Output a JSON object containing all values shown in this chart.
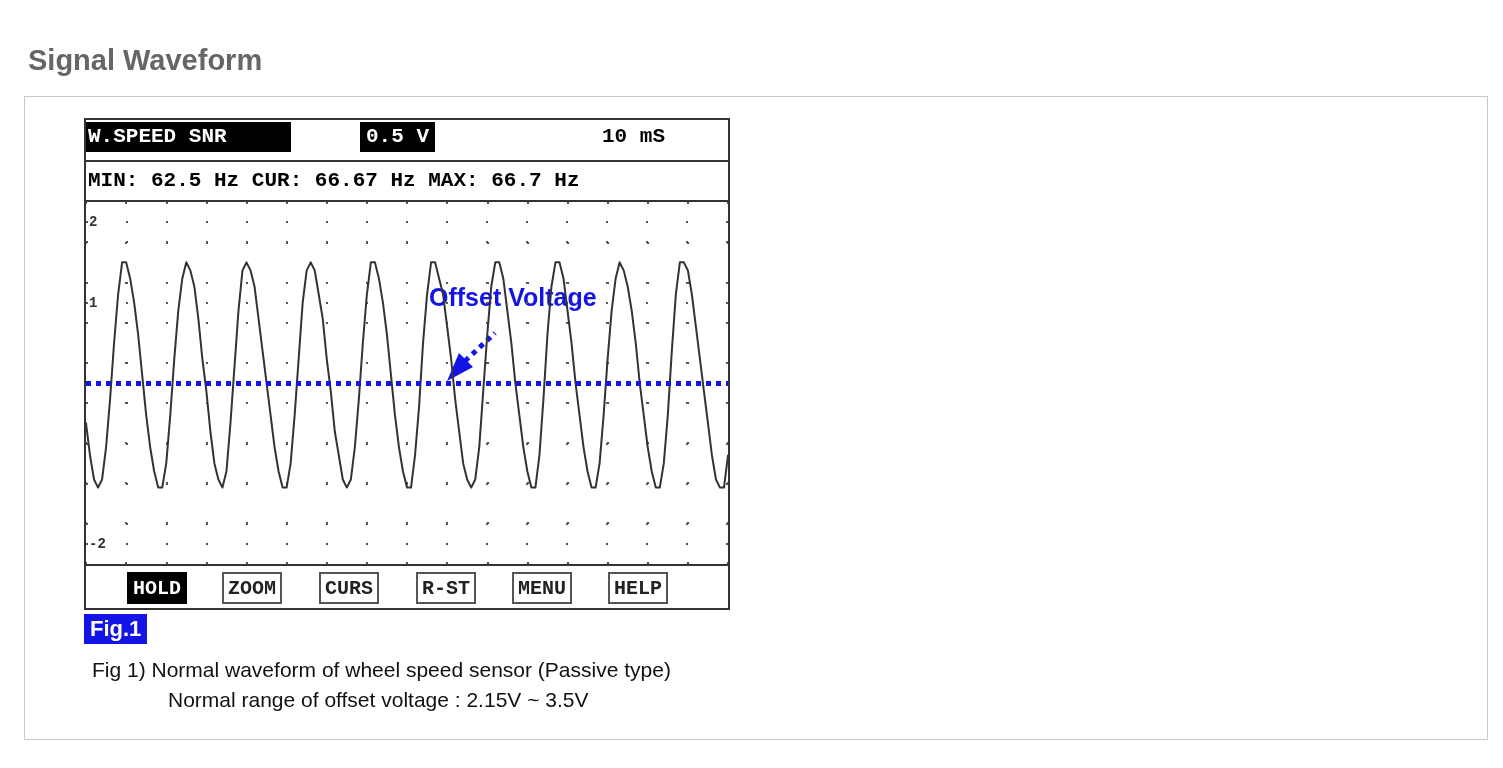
{
  "chart_data": {
    "type": "line",
    "title": "Signal Waveform",
    "annotations": [
      "W.SPEED SNR",
      "0.5 V",
      "10 mS",
      "MIN: 62.5 Hz CUR: 66.67 Hz MAX: 66.7 Hz",
      "HOLD",
      "ZOOM",
      "CURS",
      "R-ST",
      "MENU",
      "HELP",
      "Fig.1",
      "Fig 1) Normal waveform of wheel speed sensor (Passive type)",
      "Normal range of offset voltage : 2.15V ~ 3.5V",
      {
        "text": "Offset Voltage",
        "y": 0
      }
    ],
    "categories": [
      null,
      null,
      null,
      null,
      null,
      null,
      null,
      null,
      null,
      null,
      null,
      null,
      null,
      null,
      null,
      null,
      null,
      null,
      null,
      null,
      null,
      null,
      null,
      null,
      null,
      null,
      null,
      null,
      null,
      null,
      null,
      null,
      null,
      null,
      null,
      null,
      null,
      null,
      null,
      null,
      null,
      null,
      null,
      null,
      null,
      null,
      null,
      null,
      null,
      null,
      null,
      null,
      null,
      null,
      null,
      null,
      null,
      null,
      null,
      null,
      null,
      null,
      null,
      null,
      null,
      null,
      null,
      null,
      null,
      null,
      null,
      null,
      null,
      null,
      null,
      null,
      null,
      null,
      null,
      null,
      null,
      null,
      null,
      null,
      null,
      null,
      null,
      null,
      null,
      null,
      null,
      null,
      null,
      null,
      null,
      null,
      null,
      null,
      null,
      null,
      null,
      null,
      null,
      null,
      null,
      null,
      null,
      null,
      null,
      null,
      null,
      null,
      null,
      null,
      null,
      null,
      null,
      null,
      null,
      null,
      null,
      null,
      null,
      null,
      null,
      null,
      null,
      null,
      null,
      null,
      null,
      null,
      null,
      null,
      null,
      null,
      null,
      null,
      null,
      null,
      null,
      null,
      null,
      null,
      null,
      null,
      null,
      null,
      null,
      null,
      null,
      null,
      null,
      null,
      null,
      null,
      null,
      null,
      null,
      null,
      null
    ],
    "series": [
      {
        "color": "#333333",
        "values": [
          -0.5,
          -0.9,
          -1.2,
          -1.3,
          -1.2,
          -0.8,
          -0.2,
          0.5,
          1.1,
          1.5,
          1.5,
          1.3,
          1.0,
          0.6,
          0.1,
          -0.4,
          -0.8,
          -1.1,
          -1.3,
          -1.3,
          -1.0,
          -0.4,
          0.3,
          0.9,
          1.3,
          1.5,
          1.4,
          1.2,
          0.8,
          0.3,
          -0.1,
          -0.6,
          -1.0,
          -1.2,
          -1.3,
          -1.1,
          -0.5,
          0.2,
          0.9,
          1.4,
          1.5,
          1.4,
          1.2,
          0.8,
          0.4,
          0.0,
          -0.4,
          -0.8,
          -1.1,
          -1.3,
          -1.3,
          -1.0,
          -0.4,
          0.3,
          1.0,
          1.4,
          1.5,
          1.4,
          1.1,
          0.8,
          0.3,
          -0.1,
          -0.6,
          -0.9,
          -1.2,
          -1.3,
          -1.2,
          -0.8,
          -0.2,
          0.5,
          1.1,
          1.5,
          1.5,
          1.3,
          1.0,
          0.6,
          0.1,
          -0.4,
          -0.8,
          -1.1,
          -1.3,
          -1.3,
          -0.9,
          -0.3,
          0.5,
          1.1,
          1.5,
          1.5,
          1.3,
          1.1,
          0.7,
          0.3,
          -0.2,
          -0.6,
          -1.0,
          -1.2,
          -1.3,
          -1.2,
          -0.8,
          -0.1,
          0.6,
          1.2,
          1.5,
          1.5,
          1.3,
          0.9,
          0.5,
          0.0,
          -0.4,
          -0.8,
          -1.1,
          -1.3,
          -1.3,
          -0.9,
          -0.2,
          0.6,
          1.2,
          1.5,
          1.5,
          1.3,
          0.9,
          0.5,
          0.0,
          -0.4,
          -0.8,
          -1.1,
          -1.3,
          -1.3,
          -1.0,
          -0.4,
          0.3,
          0.9,
          1.3,
          1.5,
          1.4,
          1.2,
          0.9,
          0.5,
          0.0,
          -0.4,
          -0.8,
          -1.1,
          -1.3,
          -1.3,
          -1.0,
          -0.4,
          0.4,
          1.1,
          1.5,
          1.5,
          1.4,
          1.1,
          0.7,
          0.3,
          -0.1,
          -0.5,
          -0.9,
          -1.2,
          -1.3,
          -1.3,
          -0.9
        ]
      }
    ],
    "ylim": [
      -2.25,
      2.25
    ],
    "yticks": [
      -2,
      {
        "value": -1.75,
        "label": null
      },
      {
        "value": -1.25,
        "label": null
      },
      {
        "value": -0.75,
        "label": null
      },
      {
        "value": -0.25,
        "label": null
      },
      {
        "value": 0.25,
        "label": null
      },
      {
        "value": 0.75,
        "label": null
      },
      1,
      {
        "value": 1.25,
        "label": null
      },
      {
        "value": 1.75,
        "label": null
      },
      2
    ],
    "ref_lines": [
      {
        "axis": "y",
        "value": 0,
        "color": "#1414e6",
        "line_style": "dotted"
      }
    ],
    "grid": true,
    "line_style": "solid",
    "tick_labels": "y"
  }
}
